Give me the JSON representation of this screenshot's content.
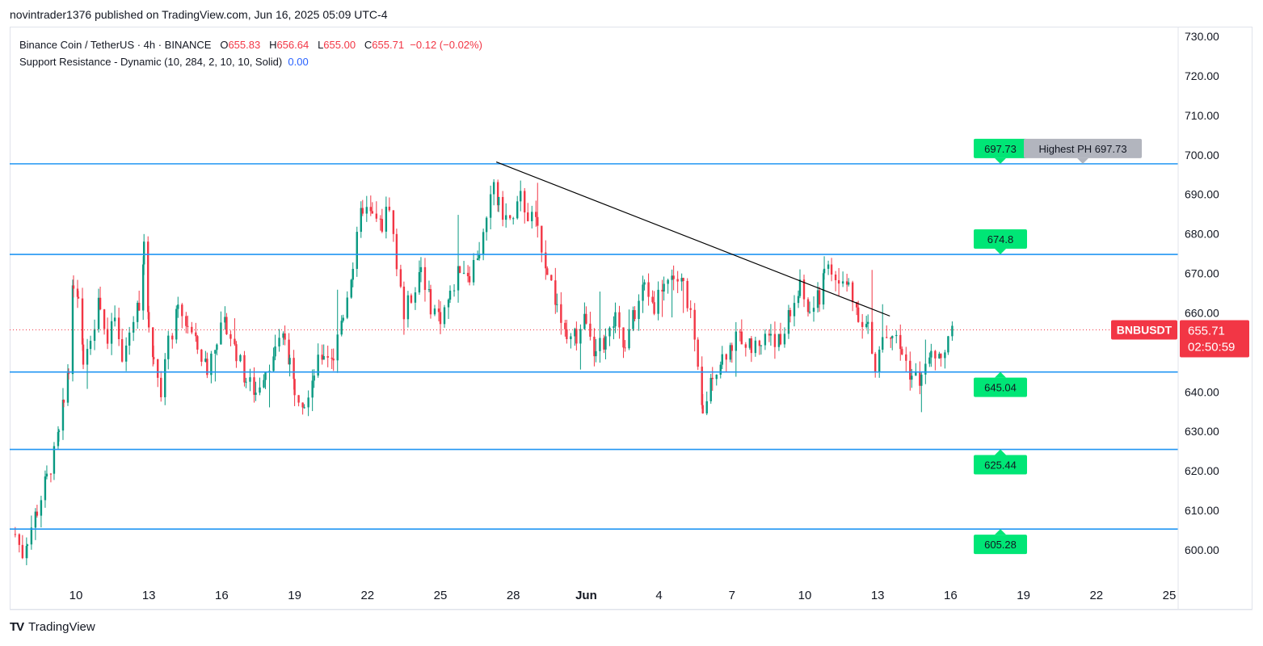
{
  "publisher_line": "novintrader1376 published on TradingView.com, Jun 16, 2025 05:09 UTC-4",
  "header": {
    "symbol_desc": "Binance Coin / TetherUS · 4h · BINANCE",
    "o_label": "O",
    "o_value": "655.83",
    "h_label": "H",
    "h_value": "656.64",
    "l_label": "L",
    "l_value": "655.00",
    "c_label": "C",
    "c_value": "655.71",
    "change": "−0.12 (−0.02%)",
    "indicator": "Support Resistance - Dynamic (10, 284, 2, 10, 10, Solid)",
    "indicator_value": "0.00"
  },
  "footer": {
    "logo_mark": "TV",
    "brand": "TradingView"
  },
  "colors": {
    "up": "#089981",
    "down": "#f23645",
    "level_line": "#2196f3",
    "level_label_bg": "#00e676",
    "ph_label_bg": "#b2b5be",
    "trendline": "#000000",
    "price_tag": "#f23645"
  },
  "chart_data": {
    "type": "candlestick",
    "symbol": "BNBUSDT",
    "timeframe": "4h",
    "ylim": [
      595,
      733
    ],
    "y_ticks": [
      "730.00",
      "720.00",
      "710.00",
      "700.00",
      "690.00",
      "680.00",
      "670.00",
      "660.00",
      "640.00",
      "630.00",
      "620.00",
      "610.00",
      "600.00"
    ],
    "x_ticks": [
      {
        "label": "10",
        "day": 10
      },
      {
        "label": "13",
        "day": 13
      },
      {
        "label": "16",
        "day": 16
      },
      {
        "label": "19",
        "day": 19
      },
      {
        "label": "22",
        "day": 22
      },
      {
        "label": "25",
        "day": 25
      },
      {
        "label": "28",
        "day": 28
      },
      {
        "label": "Jun",
        "day": 31
      },
      {
        "label": "4",
        "day": 34
      },
      {
        "label": "7",
        "day": 37
      },
      {
        "label": "10",
        "day": 40
      },
      {
        "label": "13",
        "day": 43
      },
      {
        "label": "16",
        "day": 46
      },
      {
        "label": "19",
        "day": 49
      },
      {
        "label": "22",
        "day": 52
      },
      {
        "label": "25",
        "day": 55
      }
    ],
    "x_domain_days": [
      7.4,
      55.3
    ],
    "levels": [
      {
        "value": 697.73,
        "label": "697.73",
        "note": "Highest PH 697.73"
      },
      {
        "value": 674.8,
        "label": "674.8"
      },
      {
        "value": 645.04,
        "label": "645.04"
      },
      {
        "value": 625.44,
        "label": "625.44"
      },
      {
        "value": 605.28,
        "label": "605.28"
      }
    ],
    "trendline": {
      "from": {
        "day": 27.3,
        "price": 698.2
      },
      "to": {
        "day": 43.5,
        "price": 659.2
      }
    },
    "last_price": {
      "label": "BNBUSDT",
      "value": "655.71",
      "countdown": "02:50:59",
      "price": 655.71
    },
    "path": [
      [
        7.5,
        604
      ],
      [
        7.8,
        599
      ],
      [
        8.0,
        603
      ],
      [
        8.4,
        610
      ],
      [
        8.8,
        618
      ],
      [
        9.1,
        624
      ],
      [
        9.3,
        629
      ],
      [
        9.5,
        637
      ],
      [
        9.7,
        647
      ],
      [
        9.9,
        668
      ],
      [
        10.1,
        662
      ],
      [
        10.3,
        648
      ],
      [
        10.6,
        655
      ],
      [
        11.0,
        663
      ],
      [
        11.3,
        652
      ],
      [
        11.6,
        659
      ],
      [
        11.9,
        647
      ],
      [
        12.2,
        655
      ],
      [
        12.6,
        663
      ],
      [
        12.8,
        676
      ],
      [
        13.0,
        658
      ],
      [
        13.2,
        648
      ],
      [
        13.5,
        641
      ],
      [
        13.8,
        652
      ],
      [
        14.2,
        660
      ],
      [
        14.6,
        657
      ],
      [
        15.0,
        651
      ],
      [
        15.4,
        646
      ],
      [
        15.8,
        654
      ],
      [
        16.2,
        657
      ],
      [
        16.6,
        650
      ],
      [
        17.0,
        643
      ],
      [
        17.4,
        640
      ],
      [
        17.8,
        646
      ],
      [
        18.2,
        650
      ],
      [
        18.6,
        654
      ],
      [
        18.8,
        648
      ],
      [
        19.0,
        641
      ],
      [
        19.4,
        638
      ],
      [
        19.8,
        645
      ],
      [
        20.2,
        650
      ],
      [
        20.6,
        649
      ],
      [
        21.0,
        660
      ],
      [
        21.4,
        672
      ],
      [
        21.8,
        687
      ],
      [
        22.2,
        684
      ],
      [
        22.6,
        682
      ],
      [
        22.9,
        688
      ],
      [
        23.2,
        672
      ],
      [
        23.5,
        660
      ],
      [
        23.8,
        664
      ],
      [
        24.2,
        672
      ],
      [
        24.6,
        662
      ],
      [
        25.0,
        659
      ],
      [
        25.4,
        664
      ],
      [
        25.8,
        672
      ],
      [
        26.2,
        670
      ],
      [
        26.6,
        676
      ],
      [
        26.9,
        682
      ],
      [
        27.2,
        693
      ],
      [
        27.4,
        687
      ],
      [
        27.7,
        684
      ],
      [
        28.0,
        683
      ],
      [
        28.3,
        689
      ],
      [
        28.6,
        685
      ],
      [
        29.0,
        682
      ],
      [
        29.4,
        671
      ],
      [
        29.8,
        662
      ],
      [
        30.2,
        652
      ],
      [
        30.6,
        654
      ],
      [
        31.0,
        659
      ],
      [
        31.4,
        650
      ],
      [
        31.8,
        653
      ],
      [
        32.2,
        658
      ],
      [
        32.6,
        650
      ],
      [
        33.0,
        660
      ],
      [
        33.4,
        667
      ],
      [
        33.8,
        662
      ],
      [
        34.2,
        668
      ],
      [
        34.6,
        669
      ],
      [
        35.0,
        667
      ],
      [
        35.3,
        660
      ],
      [
        35.6,
        644
      ],
      [
        35.8,
        634
      ],
      [
        36.2,
        645
      ],
      [
        36.6,
        649
      ],
      [
        37.0,
        652
      ],
      [
        37.4,
        654
      ],
      [
        37.8,
        651
      ],
      [
        38.2,
        653
      ],
      [
        38.6,
        655
      ],
      [
        39.0,
        652
      ],
      [
        39.4,
        660
      ],
      [
        39.8,
        666
      ],
      [
        40.2,
        660
      ],
      [
        40.6,
        664
      ],
      [
        40.8,
        672
      ],
      [
        41.1,
        670
      ],
      [
        41.4,
        667
      ],
      [
        41.8,
        667
      ],
      [
        42.2,
        660
      ],
      [
        42.6,
        656
      ],
      [
        42.9,
        645
      ],
      [
        43.2,
        654
      ],
      [
        43.6,
        655
      ],
      [
        44.0,
        650
      ],
      [
        44.4,
        644
      ],
      [
        44.8,
        643
      ],
      [
        45.2,
        649
      ],
      [
        45.6,
        648
      ],
      [
        45.9,
        652
      ],
      [
        46.1,
        656
      ]
    ]
  }
}
